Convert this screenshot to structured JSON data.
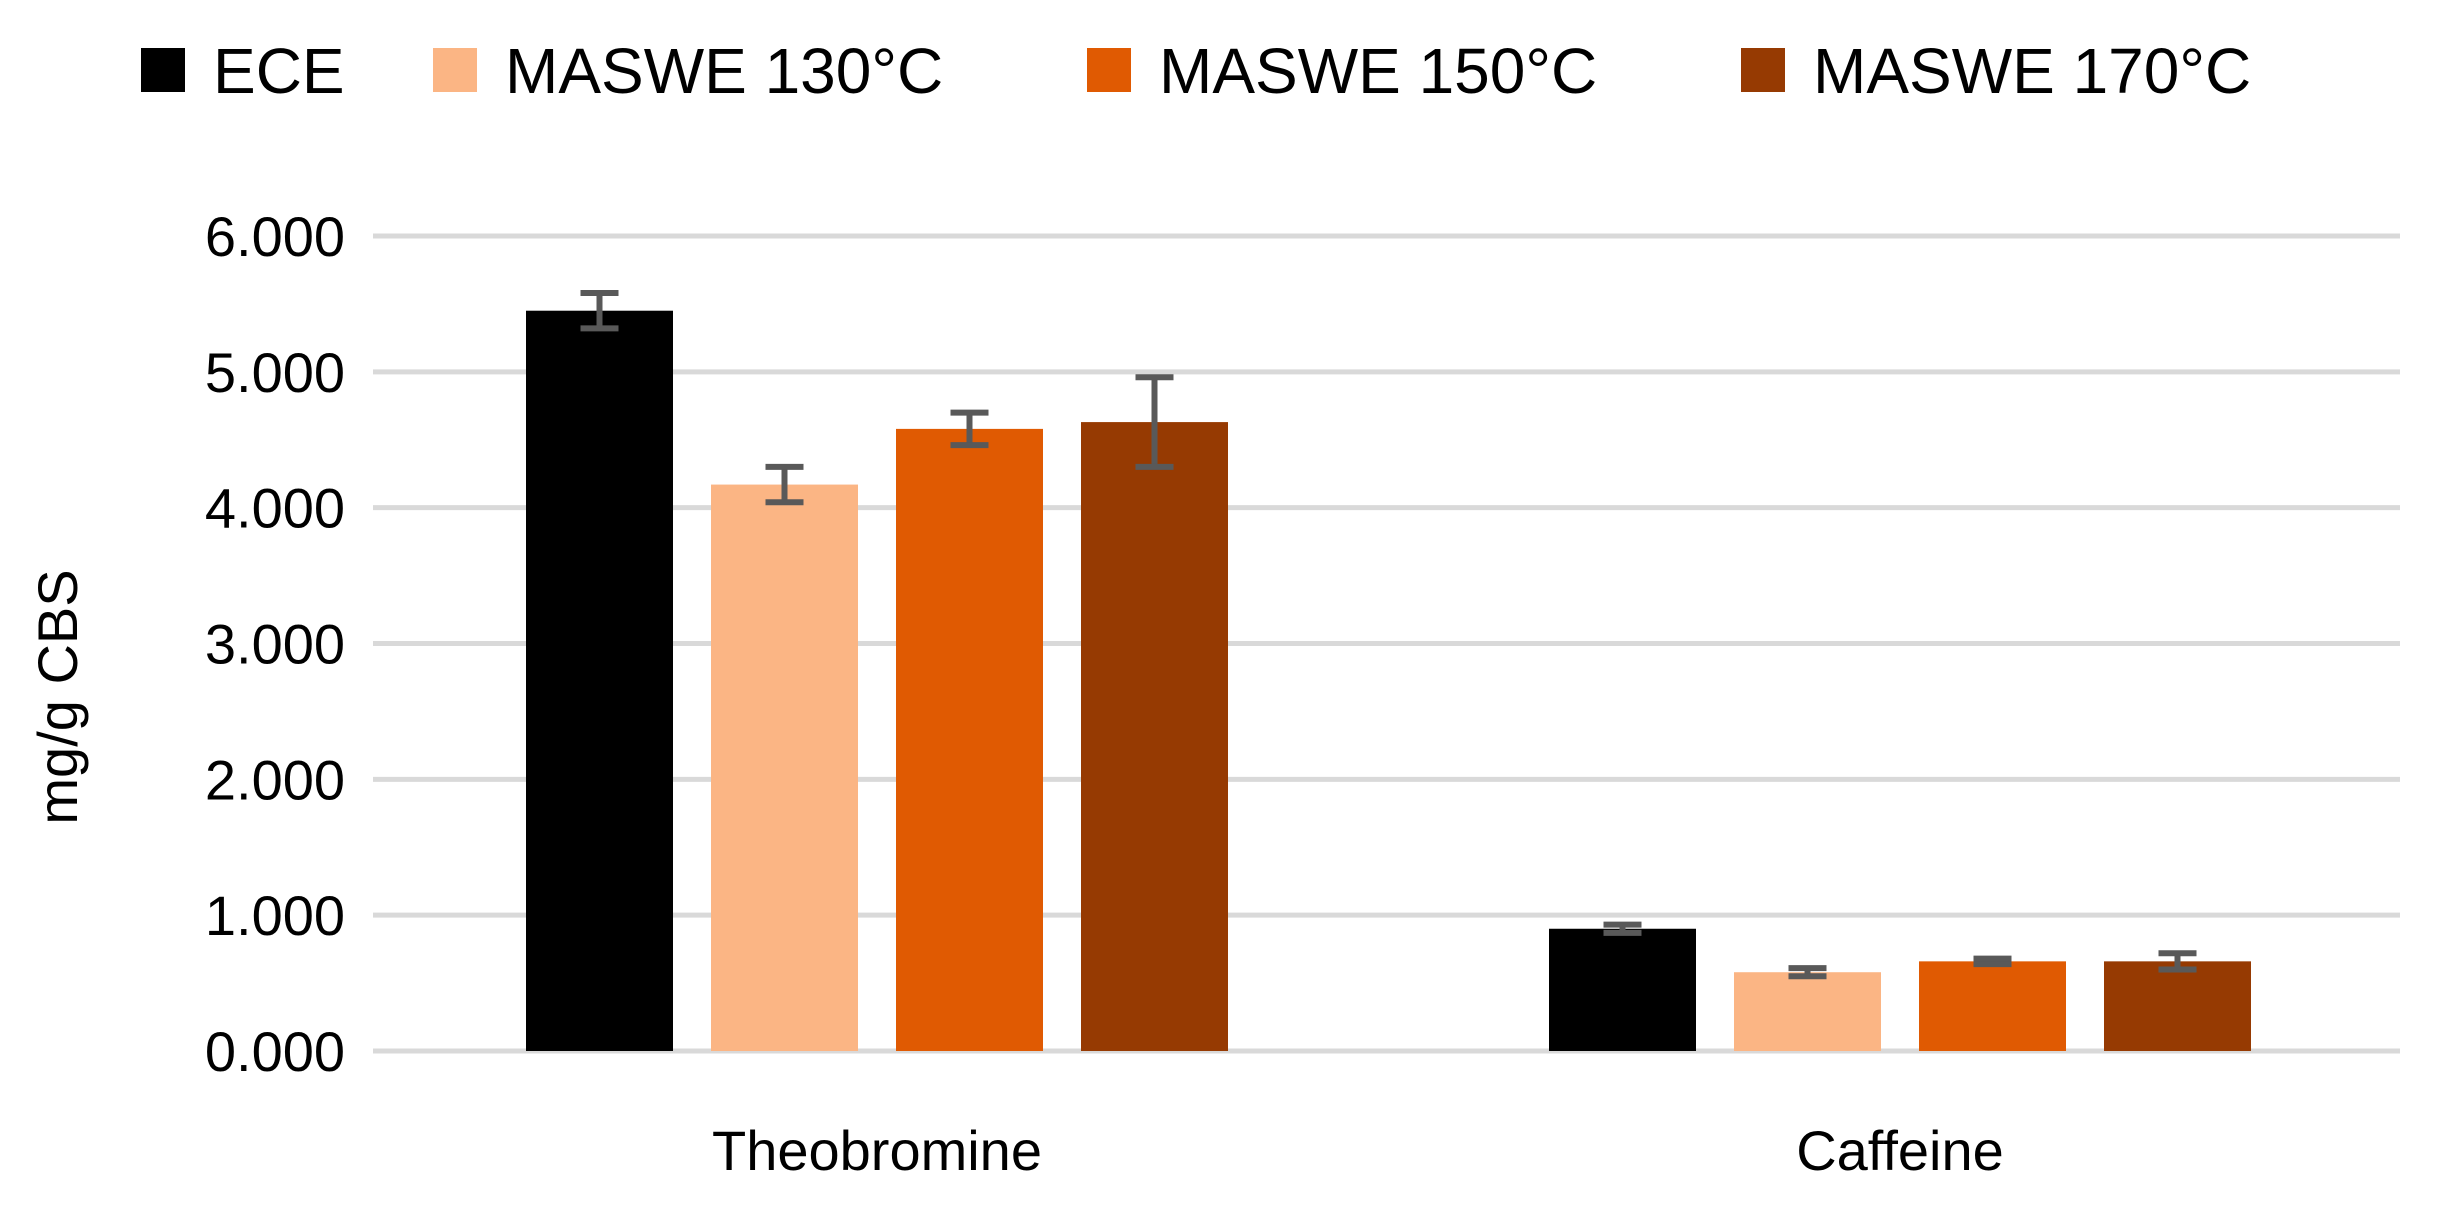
{
  "chart_data": {
    "type": "bar",
    "title": "",
    "xlabel": "",
    "ylabel": "mg/g CBS",
    "ylim": [
      0,
      6
    ],
    "yticks": [
      0,
      1,
      2,
      3,
      4,
      5,
      6
    ],
    "ytick_labels": [
      "0.000",
      "1.000",
      "2.000",
      "3.000",
      "4.000",
      "5.000",
      "6.000"
    ],
    "grid": true,
    "legend_position": "top",
    "categories": [
      "Theobromine",
      "Caffeine"
    ],
    "series": [
      {
        "name": "ECE",
        "color": "#000000",
        "values": [
          5.45,
          0.9
        ],
        "errors": [
          0.13,
          0.03
        ]
      },
      {
        "name": "MASWE 130°C",
        "color": "#fbb584",
        "values": [
          4.17,
          0.58
        ],
        "errors": [
          0.13,
          0.03
        ]
      },
      {
        "name": "MASWE 150°C",
        "color": "#e05a02",
        "values": [
          4.58,
          0.66
        ],
        "errors": [
          0.12,
          0.02
        ]
      },
      {
        "name": "MASWE 170°C",
        "color": "#963a02",
        "values": [
          4.63,
          0.66
        ],
        "errors": [
          0.33,
          0.06
        ]
      }
    ]
  }
}
